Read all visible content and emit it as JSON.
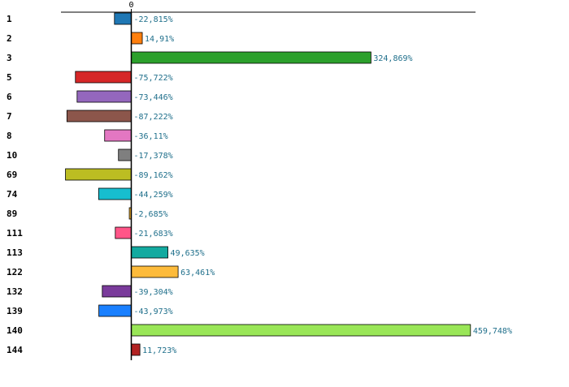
{
  "chart_data": {
    "type": "bar",
    "orientation": "horizontal",
    "title": "",
    "xlabel": "",
    "ylabel": "",
    "categories": [
      "1",
      "2",
      "3",
      "5",
      "6",
      "7",
      "8",
      "10",
      "69",
      "74",
      "89",
      "111",
      "113",
      "122",
      "132",
      "139",
      "140",
      "144"
    ],
    "values": [
      -22.815,
      14.91,
      324.869,
      -75.722,
      -73.446,
      -87.222,
      -36.11,
      -17.378,
      -89.162,
      -44.259,
      -2.685,
      -21.683,
      49.635,
      63.461,
      -39.304,
      -43.973,
      459.748,
      11.723
    ],
    "value_labels": [
      "-22,815%",
      "14,91%",
      "324,869%",
      "-75,722%",
      "-73,446%",
      "-87,222%",
      "-36,11%",
      "-17,378%",
      "-89,162%",
      "-44,259%",
      "-2,685%",
      "-21,683%",
      "49,635%",
      "63,461%",
      "-39,304%",
      "-43,973%",
      "459,748%",
      "11,723%"
    ],
    "colors": [
      "#1f77b4",
      "#ff7f0e",
      "#2ca02c",
      "#d62728",
      "#9467bd",
      "#8c564b",
      "#e377c2",
      "#7f7f7f",
      "#bcbd22",
      "#17becf",
      "#ffbb33",
      "#ff5588",
      "#13aaa0",
      "#fdbb3b",
      "#7a3b9b",
      "#1a80ff",
      "#99e657",
      "#b22222"
    ],
    "xlim": [
      -95,
      465
    ],
    "x_ticks": [
      0
    ],
    "x_tick_labels": [
      "0"
    ],
    "grid": false,
    "legend": "none"
  }
}
